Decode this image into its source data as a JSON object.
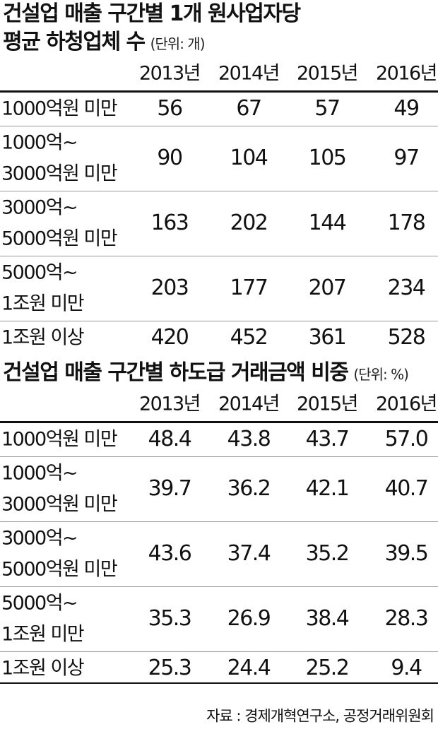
{
  "tables": [
    {
      "title": [
        "건설업 매출 구간별 1개 원사업자당",
        "평균 하청업체 수"
      ],
      "unit": "(단위: 개)",
      "headers": [
        "2013년",
        "2014년",
        "2015년",
        "2016년"
      ],
      "rows": [
        {
          "label": [
            "1000억원 미만"
          ],
          "cells": [
            "56",
            "67",
            "57",
            "49"
          ]
        },
        {
          "label": [
            "1000억~",
            "3000억원 미만"
          ],
          "cells": [
            "90",
            "104",
            "105",
            "97"
          ]
        },
        {
          "label": [
            "3000억~",
            "5000억원 미만"
          ],
          "cells": [
            "163",
            "202",
            "144",
            "178"
          ]
        },
        {
          "label": [
            "5000억~",
            "1조원 미만"
          ],
          "cells": [
            "203",
            "177",
            "207",
            "234"
          ]
        },
        {
          "label": [
            "1조원 이상"
          ],
          "cells": [
            "420",
            "452",
            "361",
            "528"
          ]
        }
      ]
    },
    {
      "title": [
        "건설업 매출 구간별 하도급 거래금액 비중"
      ],
      "unit": "(단위: %)",
      "headers": [
        "2013년",
        "2014년",
        "2015년",
        "2016년"
      ],
      "rows": [
        {
          "label": [
            "1000억원 미만"
          ],
          "cells": [
            "48.4",
            "43.8",
            "43.7",
            "57.0"
          ]
        },
        {
          "label": [
            "1000억~",
            "3000억원 미만"
          ],
          "cells": [
            "39.7",
            "36.2",
            "42.1",
            "40.7"
          ]
        },
        {
          "label": [
            "3000억~",
            "5000억원 미만"
          ],
          "cells": [
            "43.6",
            "37.4",
            "35.2",
            "39.5"
          ]
        },
        {
          "label": [
            "5000억~",
            "1조원 미만"
          ],
          "cells": [
            "35.3",
            "26.9",
            "38.4",
            "28.3"
          ]
        },
        {
          "label": [
            "1조원 이상"
          ],
          "cells": [
            "25.3",
            "24.4",
            "25.2",
            "9.4"
          ]
        }
      ]
    }
  ],
  "source": "자료 : 경제개혁연구소, 공정거래위원회"
}
